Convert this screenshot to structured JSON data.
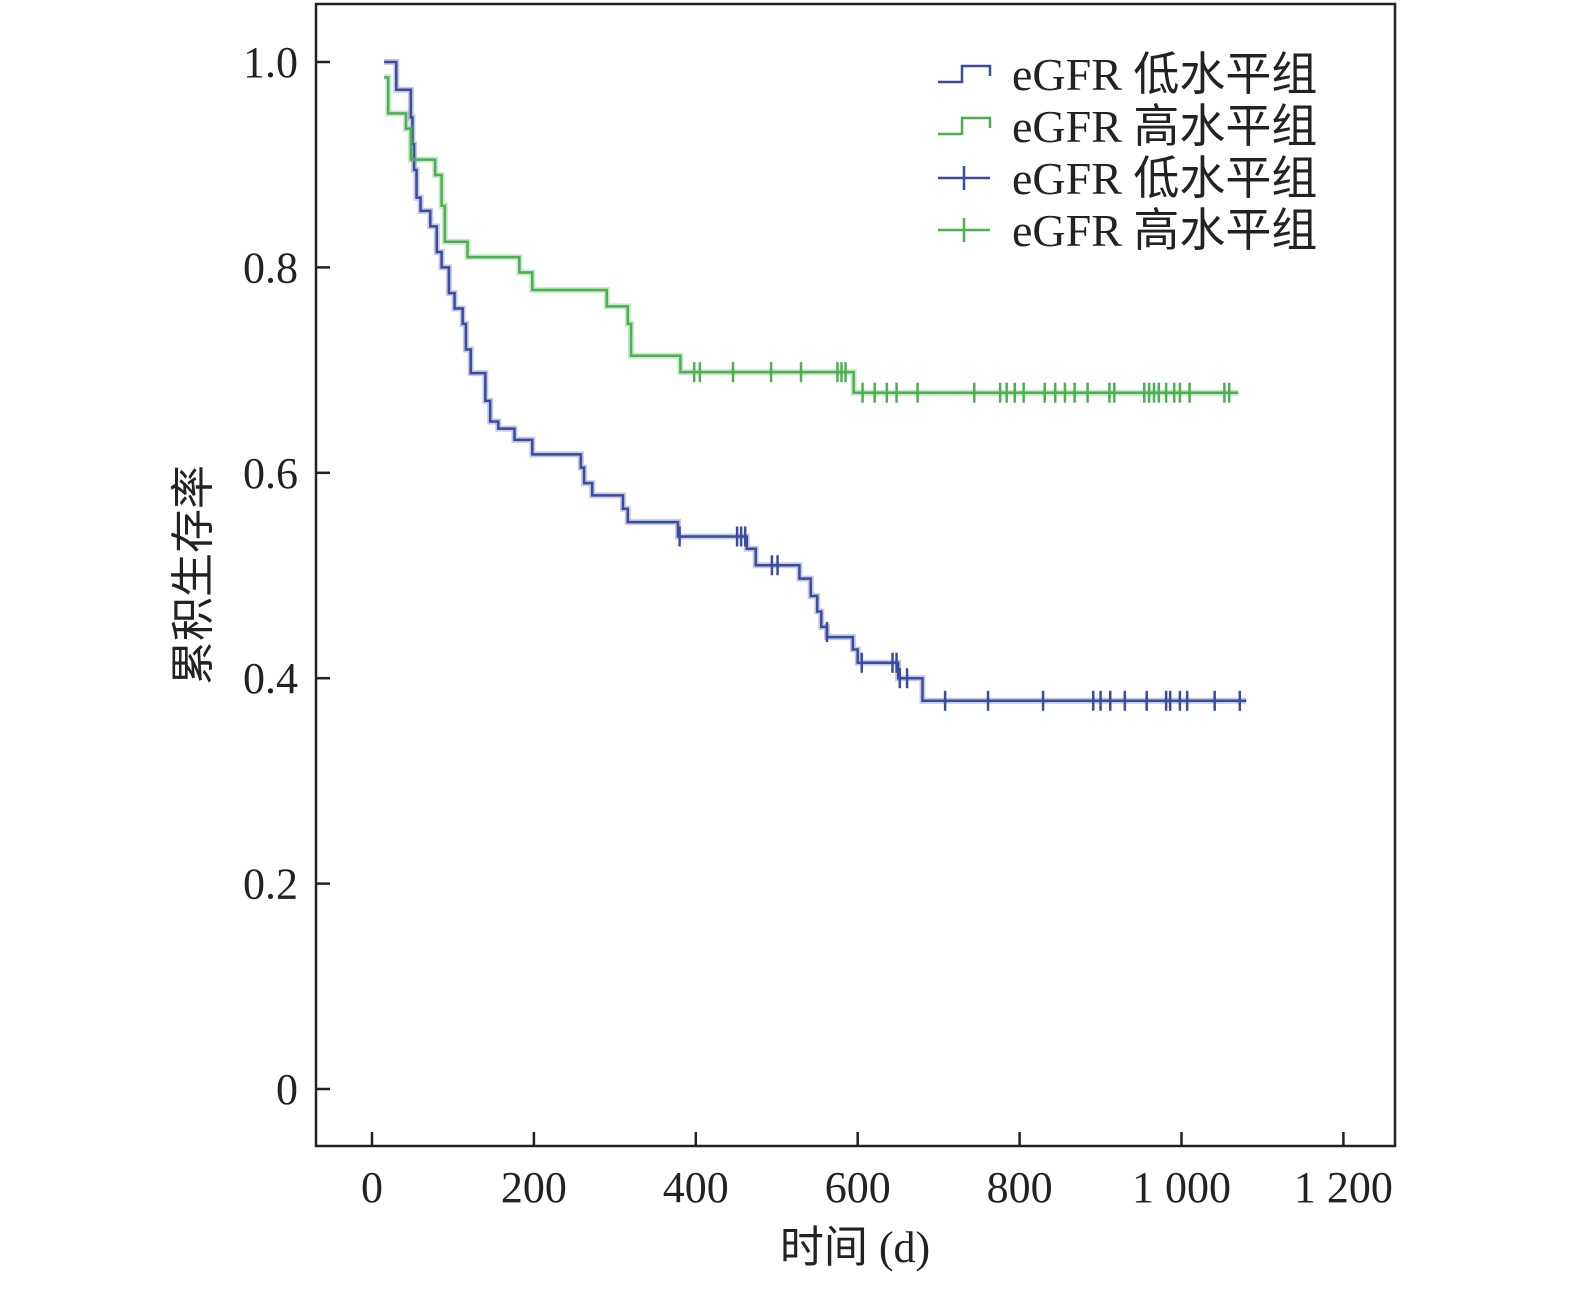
{
  "chart_data": {
    "type": "line",
    "subtype": "kaplan-meier",
    "title": "",
    "xlabel": "时间 (d)",
    "ylabel": "累积生存率",
    "xlim": [
      -70,
      1265
    ],
    "ylim": [
      -0.055,
      1.057
    ],
    "xticks": [
      0,
      200,
      400,
      600,
      800,
      1000,
      1200
    ],
    "xtick_labels": [
      "0",
      "200",
      "400",
      "600",
      "800",
      "1 000",
      "1 200"
    ],
    "yticks": [
      0,
      0.2,
      0.4,
      0.6,
      0.8,
      1.0
    ],
    "ytick_labels": [
      "0",
      "0.2",
      "0.4",
      "0.6",
      "0.8",
      "1.0"
    ],
    "grid": false,
    "legend_position": "top-right",
    "legend": [
      {
        "label": "eGFR 低水平组",
        "style": "step",
        "series": 0
      },
      {
        "label": "eGFR 高水平组",
        "style": "step",
        "series": 1
      },
      {
        "label": "eGFR 低水平组",
        "style": "censor",
        "series": 0
      },
      {
        "label": "eGFR 高水平组",
        "style": "censor",
        "series": 1
      }
    ],
    "series": [
      {
        "name": "eGFR 低水平组",
        "color": "#3a4ba0",
        "steps": [
          [
            15,
            1.0
          ],
          [
            30,
            0.973
          ],
          [
            48,
            0.946
          ],
          [
            50,
            0.92
          ],
          [
            52,
            0.895
          ],
          [
            55,
            0.868
          ],
          [
            60,
            0.855
          ],
          [
            72,
            0.84
          ],
          [
            80,
            0.815
          ],
          [
            86,
            0.8
          ],
          [
            95,
            0.775
          ],
          [
            102,
            0.76
          ],
          [
            112,
            0.745
          ],
          [
            116,
            0.72
          ],
          [
            122,
            0.697
          ],
          [
            140,
            0.67
          ],
          [
            146,
            0.65
          ],
          [
            156,
            0.643
          ],
          [
            176,
            0.632
          ],
          [
            198,
            0.618
          ],
          [
            258,
            0.605
          ],
          [
            262,
            0.59
          ],
          [
            272,
            0.578
          ],
          [
            310,
            0.565
          ],
          [
            316,
            0.552
          ],
          [
            378,
            0.538
          ],
          [
            463,
            0.526
          ],
          [
            474,
            0.51
          ],
          [
            528,
            0.497
          ],
          [
            542,
            0.48
          ],
          [
            550,
            0.465
          ],
          [
            555,
            0.45
          ],
          [
            562,
            0.44
          ],
          [
            594,
            0.428
          ],
          [
            600,
            0.415
          ],
          [
            650,
            0.4
          ],
          [
            680,
            0.378
          ],
          [
            1080,
            0.378
          ]
        ],
        "censored": [
          [
            380,
            0.538
          ],
          [
            451,
            0.538
          ],
          [
            456,
            0.538
          ],
          [
            461,
            0.538
          ],
          [
            494,
            0.51
          ],
          [
            501,
            0.51
          ],
          [
            562,
            0.445
          ],
          [
            605,
            0.415
          ],
          [
            643,
            0.415
          ],
          [
            648,
            0.415
          ],
          [
            652,
            0.4
          ],
          [
            661,
            0.4
          ],
          [
            708,
            0.378
          ],
          [
            761,
            0.378
          ],
          [
            829,
            0.378
          ],
          [
            891,
            0.378
          ],
          [
            900,
            0.378
          ],
          [
            912,
            0.378
          ],
          [
            930,
            0.378
          ],
          [
            957,
            0.378
          ],
          [
            981,
            0.378
          ],
          [
            986,
            0.378
          ],
          [
            998,
            0.378
          ],
          [
            1007,
            0.378
          ],
          [
            1041,
            0.378
          ],
          [
            1072,
            0.378
          ]
        ]
      },
      {
        "name": "eGFR 高水平组",
        "color": "#4caf50",
        "steps": [
          [
            15,
            0.985
          ],
          [
            20,
            0.95
          ],
          [
            42,
            0.935
          ],
          [
            48,
            0.905
          ],
          [
            78,
            0.89
          ],
          [
            86,
            0.86
          ],
          [
            90,
            0.825
          ],
          [
            118,
            0.81
          ],
          [
            182,
            0.795
          ],
          [
            198,
            0.778
          ],
          [
            290,
            0.762
          ],
          [
            316,
            0.745
          ],
          [
            320,
            0.714
          ],
          [
            381,
            0.698
          ],
          [
            595,
            0.678
          ],
          [
            1070,
            0.678
          ]
        ],
        "censored": [
          [
            398,
            0.698
          ],
          [
            405,
            0.698
          ],
          [
            446,
            0.698
          ],
          [
            493,
            0.698
          ],
          [
            530,
            0.698
          ],
          [
            575,
            0.698
          ],
          [
            580,
            0.698
          ],
          [
            585,
            0.698
          ],
          [
            606,
            0.678
          ],
          [
            621,
            0.678
          ],
          [
            636,
            0.678
          ],
          [
            648,
            0.678
          ],
          [
            674,
            0.678
          ],
          [
            744,
            0.678
          ],
          [
            776,
            0.678
          ],
          [
            784,
            0.678
          ],
          [
            794,
            0.678
          ],
          [
            805,
            0.678
          ],
          [
            831,
            0.678
          ],
          [
            844,
            0.678
          ],
          [
            856,
            0.678
          ],
          [
            868,
            0.678
          ],
          [
            884,
            0.678
          ],
          [
            911,
            0.678
          ],
          [
            917,
            0.678
          ],
          [
            954,
            0.678
          ],
          [
            960,
            0.678
          ],
          [
            966,
            0.678
          ],
          [
            972,
            0.678
          ],
          [
            981,
            0.678
          ],
          [
            991,
            0.678
          ],
          [
            998,
            0.678
          ],
          [
            1010,
            0.678
          ],
          [
            1053,
            0.678
          ],
          [
            1059,
            0.678
          ]
        ]
      }
    ]
  }
}
